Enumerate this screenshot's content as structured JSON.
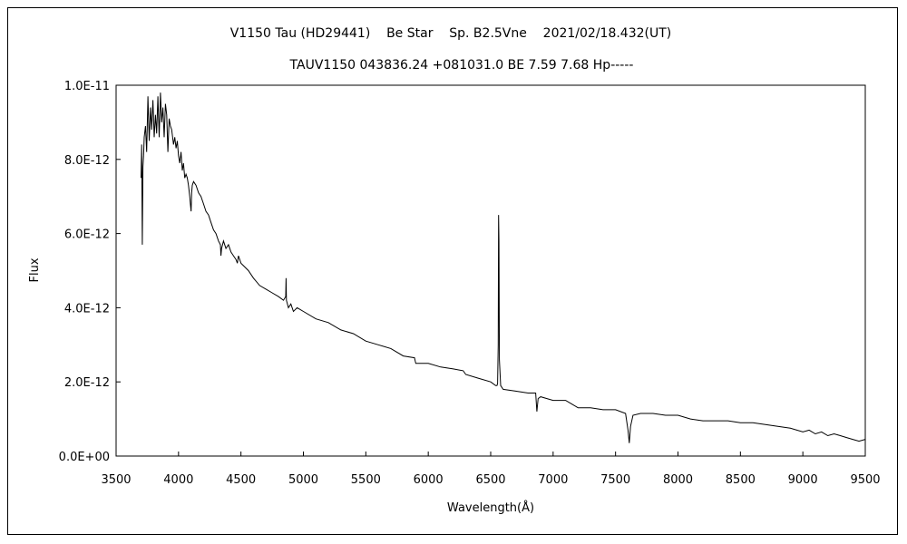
{
  "chart_data": {
    "type": "line",
    "title": "V1150 Tau (HD29441)    Be Star    Sp. B2.5Vne    2021/02/18.432(UT)",
    "subtitle": "TAUV1150 043836.24 +081031.0 BE 7.59 7.68 Hp-----",
    "xlabel": "Wavelength(Å)",
    "ylabel": "Flux",
    "xlim": [
      3500,
      9500
    ],
    "ylim": [
      0,
      1e-11
    ],
    "xticks": [
      3500,
      4000,
      4500,
      5000,
      5500,
      6000,
      6500,
      7000,
      7500,
      8000,
      8500,
      9000,
      9500
    ],
    "xtick_labels": [
      "3500",
      "4000",
      "4500",
      "5000",
      "5500",
      "6000",
      "6500",
      "7000",
      "7500",
      "8000",
      "8500",
      "9000",
      "9500"
    ],
    "yticks": [
      0,
      2e-12,
      4e-12,
      6e-12,
      8e-12,
      1e-11
    ],
    "ytick_labels": [
      "0.0E+00",
      "2.0E-12",
      "4.0E-12",
      "6.0E-12",
      "8.0E-12",
      "1.0E-11"
    ],
    "grid": false,
    "legend": "none",
    "line_color": "#000000",
    "series": [
      {
        "x": [
          3700,
          3705,
          3710,
          3715,
          3720,
          3725,
          3735,
          3745,
          3755,
          3765,
          3775,
          3785,
          3795,
          3805,
          3815,
          3825,
          3835,
          3845,
          3855,
          3865,
          3875,
          3885,
          3895,
          3905,
          3915,
          3925,
          3935,
          3945,
          3960,
          3970,
          3980,
          3990,
          4000,
          4010,
          4020,
          4030,
          4040,
          4050,
          4060,
          4070,
          4080,
          4090,
          4095,
          4101,
          4105,
          4110,
          4120,
          4140,
          4160,
          4180,
          4200,
          4220,
          4240,
          4260,
          4280,
          4300,
          4320,
          4335,
          4340,
          4345,
          4360,
          4380,
          4400,
          4420,
          4440,
          4460,
          4471,
          4480,
          4500,
          4530,
          4560,
          4600,
          4650,
          4700,
          4750,
          4800,
          4840,
          4858,
          4861,
          4864,
          4880,
          4900,
          4920,
          4950,
          5000,
          5100,
          5200,
          5300,
          5400,
          5500,
          5600,
          5700,
          5800,
          5890,
          5900,
          6000,
          6100,
          6200,
          6280,
          6300,
          6400,
          6500,
          6540,
          6550,
          6555,
          6560,
          6563,
          6566,
          6570,
          6580,
          6600,
          6700,
          6800,
          6860,
          6870,
          6880,
          6900,
          6950,
          7000,
          7100,
          7150,
          7200,
          7300,
          7400,
          7500,
          7580,
          7600,
          7610,
          7620,
          7640,
          7700,
          7800,
          7900,
          8000,
          8100,
          8200,
          8300,
          8400,
          8500,
          8600,
          8700,
          8800,
          8900,
          9000,
          9050,
          9100,
          9150,
          9200,
          9250,
          9300,
          9350,
          9400,
          9450,
          9500
        ],
        "y": [
          7.5e-12,
          8.4e-12,
          5.7e-12,
          7.8e-12,
          8.1e-12,
          8.6e-12,
          8.9e-12,
          8.2e-12,
          9.7e-12,
          8.5e-12,
          9.4e-12,
          8.8e-12,
          9.6e-12,
          8.6e-12,
          9.2e-12,
          8.7e-12,
          9.7e-12,
          8.6e-12,
          9.8e-12,
          9e-12,
          9.4e-12,
          8.6e-12,
          9.5e-12,
          9.2e-12,
          8.2e-12,
          9.1e-12,
          8.9e-12,
          8.8e-12,
          8.4e-12,
          8.6e-12,
          8.3e-12,
          8.5e-12,
          8.1e-12,
          7.9e-12,
          8.2e-12,
          7.7e-12,
          7.9e-12,
          7.5e-12,
          7.6e-12,
          7.5e-12,
          7.3e-12,
          7e-12,
          6.8e-12,
          6.6e-12,
          7.1e-12,
          7.3e-12,
          7.4e-12,
          7.3e-12,
          7.1e-12,
          7e-12,
          6.8e-12,
          6.6e-12,
          6.5e-12,
          6.3e-12,
          6.1e-12,
          6e-12,
          5.8e-12,
          5.7e-12,
          5.4e-12,
          5.6e-12,
          5.8e-12,
          5.6e-12,
          5.7e-12,
          5.5e-12,
          5.4e-12,
          5.3e-12,
          5.2e-12,
          5.4e-12,
          5.2e-12,
          5.1e-12,
          5e-12,
          4.8e-12,
          4.6e-12,
          4.5e-12,
          4.4e-12,
          4.3e-12,
          4.2e-12,
          4.3e-12,
          4.8e-12,
          4.2e-12,
          4e-12,
          4.1e-12,
          3.9e-12,
          4e-12,
          3.9e-12,
          3.7e-12,
          3.6e-12,
          3.4e-12,
          3.3e-12,
          3.1e-12,
          3e-12,
          2.9e-12,
          2.7e-12,
          2.65e-12,
          2.5e-12,
          2.5e-12,
          2.4e-12,
          2.35e-12,
          2.3e-12,
          2.2e-12,
          2.1e-12,
          2e-12,
          1.9e-12,
          1.9e-12,
          1.95e-12,
          3e-12,
          6.5e-12,
          5.8e-12,
          2.6e-12,
          1.9e-12,
          1.8e-12,
          1.75e-12,
          1.7e-12,
          1.7e-12,
          1.2e-12,
          1.55e-12,
          1.6e-12,
          1.55e-12,
          1.5e-12,
          1.5e-12,
          1.4e-12,
          1.3e-12,
          1.3e-12,
          1.25e-12,
          1.25e-12,
          1.15e-12,
          7e-13,
          3.5e-13,
          8e-13,
          1.1e-12,
          1.15e-12,
          1.15e-12,
          1.1e-12,
          1.1e-12,
          1e-12,
          9.5e-13,
          9.5e-13,
          9.5e-13,
          9e-13,
          9e-13,
          8.5e-13,
          8e-13,
          7.5e-13,
          6.5e-13,
          7e-13,
          6e-13,
          6.5e-13,
          5.5e-13,
          6e-13,
          5.5e-13,
          5e-13,
          4.5e-13,
          4e-13,
          4.5e-13
        ]
      }
    ]
  }
}
